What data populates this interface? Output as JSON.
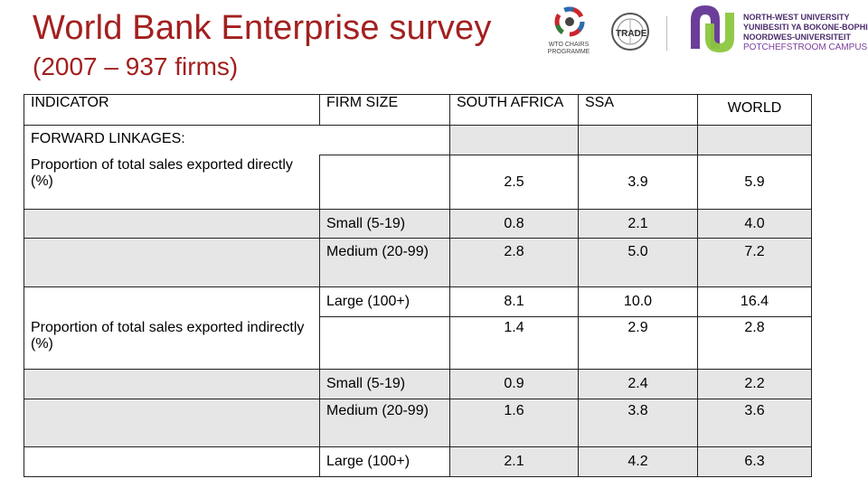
{
  "title": {
    "line1": "World Bank Enterprise survey",
    "line2": "(2007 – 937 firms)"
  },
  "logos": {
    "wto": {
      "name": "wto-chairs-logo",
      "caption_line1": "WTO CHAIRS",
      "caption_line2": "PROGRAMME"
    },
    "trade": {
      "name": "trade-logo",
      "label": "TRADE"
    },
    "nwu": {
      "line1": "NORTH-WEST UNIVERSITY",
      "line2": "YUNIBESITI YA BOKONE-BOPHIRIMA",
      "line3": "NOORDWES-UNIVERSITEIT",
      "line4": "POTCHEFSTROOM CAMPUS"
    }
  },
  "table": {
    "headers": [
      "INDICATOR",
      "FIRM SIZE",
      "SOUTH AFRICA",
      "SSA",
      "WORLD"
    ],
    "section_label": "FORWARD LINKAGES:",
    "rows": [
      {
        "indicator": "Proportion of total sales exported directly (%)",
        "size": "",
        "sa": "2.5",
        "ssa": "3.9",
        "world": "5.9"
      },
      {
        "indicator": "",
        "size": "Small (5-19)",
        "sa": "0.8",
        "ssa": "2.1",
        "world": "4.0"
      },
      {
        "indicator": "",
        "size": "Medium (20-99)",
        "sa": "2.8",
        "ssa": "5.0",
        "world": "7.2"
      },
      {
        "indicator": "",
        "size": "Large (100+)",
        "sa": "8.1",
        "ssa": "10.0",
        "world": "16.4"
      },
      {
        "indicator": "Proportion of total sales exported indirectly (%)",
        "size": "",
        "sa": "1.4",
        "ssa": "2.9",
        "world": "2.8"
      },
      {
        "indicator": "",
        "size": "Small (5-19)",
        "sa": "0.9",
        "ssa": "2.4",
        "world": "2.2"
      },
      {
        "indicator": "",
        "size": "Medium (20-99)",
        "sa": "1.6",
        "ssa": "3.8",
        "world": "3.6"
      },
      {
        "indicator": "",
        "size": "Large (100+)",
        "sa": "2.1",
        "ssa": "4.2",
        "world": "6.3"
      }
    ]
  }
}
